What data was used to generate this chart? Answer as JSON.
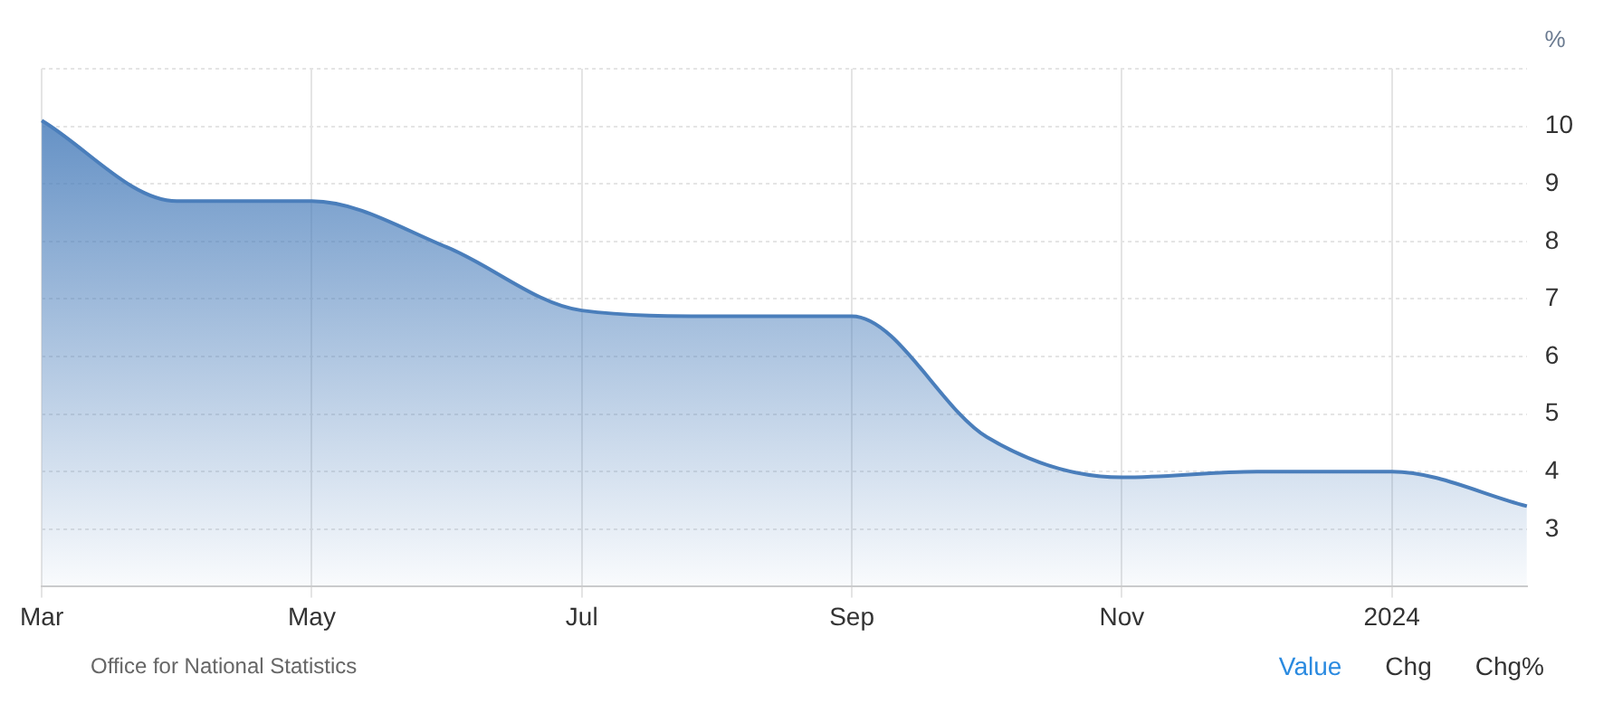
{
  "chart_data": {
    "type": "area",
    "ylabel": "%",
    "categories": [
      "Mar",
      null,
      "May",
      null,
      "Jul",
      null,
      "Sep",
      null,
      "Nov",
      null,
      "2024",
      null
    ],
    "series": [
      {
        "color": "#4a7ebb",
        "values": [
          10.1,
          8.7,
          8.7,
          7.9,
          6.8,
          6.7,
          6.7,
          4.6,
          3.9,
          4.0,
          4.0,
          3.4
        ]
      }
    ],
    "ylim": [
      2,
      11
    ],
    "yticks": [
      {
        "value": 2,
        "label": null
      },
      3,
      4,
      5,
      6,
      7,
      8,
      9,
      10,
      {
        "value": 11,
        "label": null
      }
    ],
    "grid": true,
    "legend": false,
    "marker": "none",
    "annotations": [
      "Office for National Statistics",
      "Value",
      "Chg",
      "Chg%"
    ]
  }
}
